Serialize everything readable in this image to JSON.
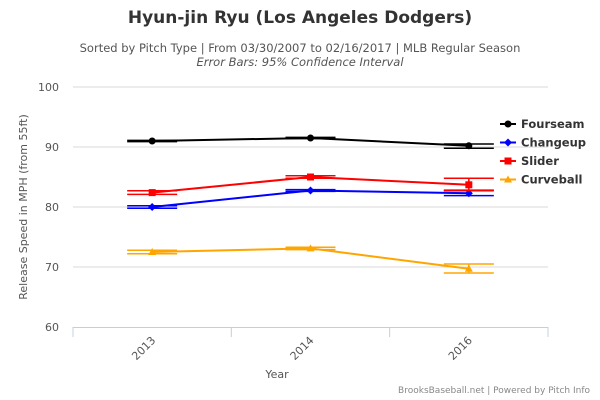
{
  "title": "Hyun-jin Ryu (Los Angeles Dodgers)",
  "subtitle": "Sorted by Pitch Type | From 03/30/2007 to 02/16/2017 | MLB Regular Season",
  "subtitle2": "Error Bars: 95% Confidence Interval",
  "credit": "BrooksBaseball.net | Powered by Pitch Info",
  "chart_data": {
    "type": "line",
    "xlabel": "Year",
    "ylabel": "Release Speed in MPH (from 55ft)",
    "categories": [
      "2013",
      "2014",
      "2016"
    ],
    "ylim": [
      60,
      100
    ],
    "yticks": [
      60,
      70,
      80,
      90,
      100
    ],
    "grid": true,
    "legend": "right",
    "series": [
      {
        "name": "Fourseam",
        "color": "#000000",
        "marker": "circle",
        "values": [
          91.0,
          91.5,
          90.2
        ],
        "err_low": [
          90.9,
          91.4,
          89.8
        ],
        "err_high": [
          91.1,
          91.6,
          90.5
        ]
      },
      {
        "name": "Changeup",
        "color": "#0000ff",
        "marker": "diamond",
        "values": [
          80.0,
          82.75,
          82.3
        ],
        "err_low": [
          79.8,
          82.6,
          81.9
        ],
        "err_high": [
          80.2,
          82.9,
          82.8
        ]
      },
      {
        "name": "Slider",
        "color": "#ff0000",
        "marker": "square",
        "values": [
          82.4,
          85.0,
          83.7
        ],
        "err_low": [
          82.1,
          84.8,
          82.7
        ],
        "err_high": [
          82.7,
          85.2,
          84.8
        ]
      },
      {
        "name": "Curveball",
        "color": "#ffa500",
        "marker": "triangle",
        "values": [
          72.5,
          73.1,
          69.7
        ],
        "err_low": [
          72.2,
          72.9,
          69.0
        ],
        "err_high": [
          72.8,
          73.3,
          70.5
        ]
      }
    ]
  }
}
